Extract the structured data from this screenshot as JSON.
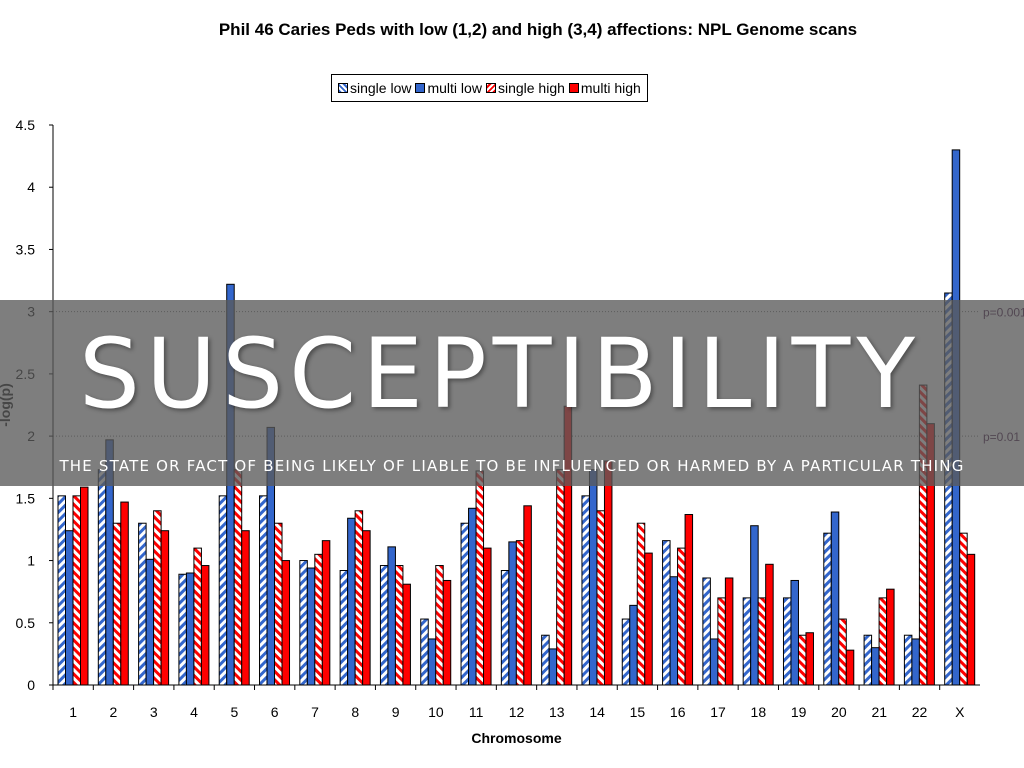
{
  "chart_data": {
    "type": "bar",
    "title": "Phil 46 Caries Peds with low (1,2) and high (3,4) affections: NPL Genome scans",
    "xlabel": "Chromosome",
    "ylabel": "-log(p)",
    "ylim": [
      0,
      4.5
    ],
    "yticks": [
      "0",
      "0.5",
      "1",
      "1.5",
      "2",
      "2.5",
      "3",
      "3.5",
      "4",
      "4.5"
    ],
    "categories": [
      "1",
      "2",
      "3",
      "4",
      "5",
      "6",
      "7",
      "8",
      "9",
      "10",
      "11",
      "12",
      "13",
      "14",
      "15",
      "16",
      "17",
      "18",
      "19",
      "20",
      "21",
      "22",
      "X"
    ],
    "series": [
      {
        "name": "single low",
        "color": "#3366cc",
        "pattern": "hatch",
        "values": [
          1.52,
          1.73,
          1.3,
          0.89,
          1.52,
          1.52,
          1.0,
          0.92,
          0.96,
          0.53,
          1.3,
          0.92,
          0.4,
          1.52,
          0.53,
          1.16,
          0.86,
          0.7,
          0.7,
          1.22,
          0.4,
          0.4,
          3.15
        ]
      },
      {
        "name": "multi low",
        "color": "#3366cc",
        "pattern": "solid",
        "values": [
          1.24,
          1.97,
          1.01,
          0.9,
          3.22,
          2.07,
          0.94,
          1.34,
          1.11,
          0.37,
          1.42,
          1.15,
          0.29,
          1.73,
          0.64,
          0.87,
          0.37,
          1.28,
          0.84,
          1.39,
          0.3,
          0.37,
          4.3
        ]
      },
      {
        "name": "single high",
        "color": "#ff0000",
        "pattern": "hatch",
        "values": [
          1.52,
          1.3,
          1.4,
          1.1,
          1.73,
          1.3,
          1.05,
          1.4,
          0.96,
          0.96,
          1.72,
          1.16,
          1.73,
          1.4,
          1.3,
          1.1,
          0.7,
          0.7,
          0.4,
          0.53,
          0.7,
          2.41,
          1.22
        ]
      },
      {
        "name": "multi high",
        "color": "#ff0000",
        "pattern": "solid",
        "values": [
          1.59,
          1.47,
          1.24,
          0.96,
          1.24,
          1.0,
          1.16,
          1.24,
          0.81,
          0.84,
          1.1,
          1.44,
          2.24,
          1.8,
          1.06,
          1.37,
          0.86,
          0.97,
          0.42,
          0.28,
          0.77,
          2.1,
          1.05
        ]
      }
    ],
    "reference_lines": [
      {
        "y": 3,
        "label": "p=0.001"
      },
      {
        "y": 2,
        "label": "p=0.01"
      }
    ],
    "legend_placement": "top-center"
  },
  "overlay": {
    "title": "SUSCEPTIBILITY",
    "subtitle": "THE STATE OR FACT OF BEING LIKELY OF LIABLE TO BE INFLUENCED OR HARMED BY A PARTICULAR THING"
  }
}
